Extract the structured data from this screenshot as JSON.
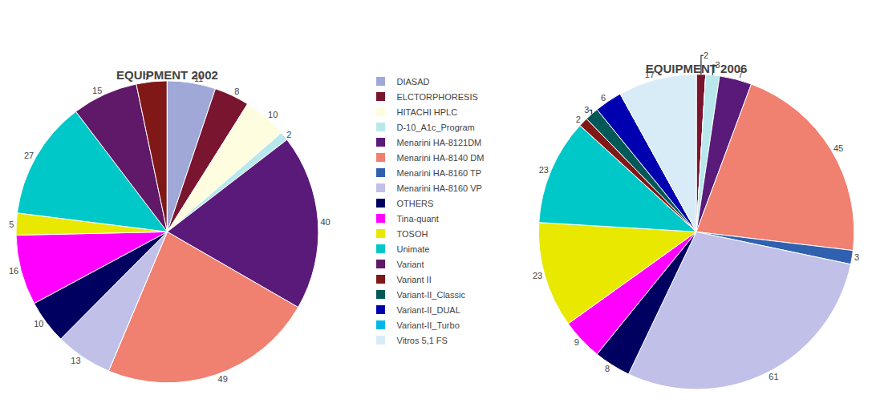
{
  "chart_data": [
    {
      "type": "pie",
      "title": "EQUIPMENT 2002",
      "categories": [
        "DIASAD",
        "ELCTORPHORESIS",
        "HITACHI HPLC",
        "D-10_A1c_Program",
        "Menarini HA-8121DM",
        "Menarini HA-8140 DM",
        "Menarini HA-8160 TP",
        "Menarini HA-8160 VP",
        "OTHERS",
        "Tina-quant",
        "TOSOH",
        "Unimate",
        "Variant",
        "Variant II",
        "Variant-II_Classic",
        "Variant-II_DUAL",
        "Variant-II_Turbo",
        "Vitros 5,1 FS"
      ],
      "values": [
        11,
        8,
        10,
        2,
        40,
        49,
        0,
        13,
        10,
        16,
        5,
        27,
        15,
        7,
        0,
        0,
        0,
        0
      ],
      "value_labels": [
        "11",
        "8",
        "10",
        "2",
        "40",
        "49",
        null,
        "13",
        "10",
        "16",
        "5",
        "27",
        "15",
        "7",
        null,
        null,
        null,
        null
      ],
      "colors": [
        "#a0a8d8",
        "#7a1530",
        "#fefde0",
        "#b8e8ec",
        "#5a1a7a",
        "#f08070",
        "#3060b0",
        "#c0c0e8",
        "#000060",
        "#ff00ff",
        "#e8e800",
        "#00c8c8",
        "#601868",
        "#801818",
        "#005858",
        "#0000b0",
        "#00b8e8",
        "#d8ecf8"
      ],
      "data_labels": true
    },
    {
      "type": "pie",
      "title": "EQUIPMENT 2006",
      "categories": [
        "DIASAD",
        "ELCTORPHORESIS",
        "HITACHI HPLC",
        "D-10_A1c_Program",
        "Menarini HA-8121DM",
        "Menarini HA-8140 DM",
        "Menarini HA-8160 TP",
        "Menarini HA-8160 VP",
        "OTHERS",
        "Tina-quant",
        "TOSOH",
        "Unimate",
        "Variant",
        "Variant II",
        "Variant-II_Classic",
        "Variant-II_DUAL",
        "Variant-II_Turbo",
        "Vitros 5,1 FS"
      ],
      "values": [
        0,
        2,
        0,
        3,
        7,
        45,
        3,
        61,
        8,
        9,
        23,
        23,
        0,
        2,
        3,
        6,
        0,
        17
      ],
      "value_labels": [
        null,
        "2",
        null,
        "3",
        "7",
        "45",
        "3",
        "61",
        "8",
        "9",
        "23",
        "23",
        null,
        "2",
        "3",
        "6",
        null,
        "17"
      ],
      "colors": [
        "#a0a8d8",
        "#7a1530",
        "#fefde0",
        "#b8e8ec",
        "#5a1a7a",
        "#f08070",
        "#3060b0",
        "#c0c0e8",
        "#000060",
        "#ff00ff",
        "#e8e800",
        "#00c8c8",
        "#601868",
        "#801818",
        "#005858",
        "#0000b0",
        "#00b8e8",
        "#d8ecf8"
      ],
      "data_labels": true
    }
  ]
}
